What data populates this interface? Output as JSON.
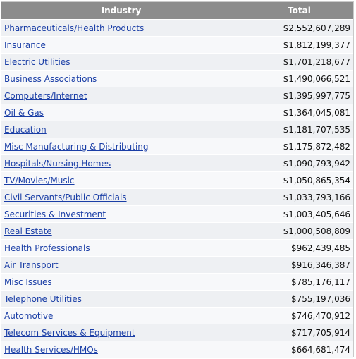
{
  "table": {
    "header": {
      "industry": "Industry",
      "total": "Total"
    },
    "rows": [
      {
        "industry": "Pharmaceuticals/Health Products",
        "total": "$2,552,607,289"
      },
      {
        "industry": "Insurance",
        "total": "$1,812,199,377"
      },
      {
        "industry": "Electric Utilities",
        "total": "$1,701,218,677"
      },
      {
        "industry": "Business Associations",
        "total": "$1,490,066,521"
      },
      {
        "industry": "Computers/Internet",
        "total": "$1,395,997,775"
      },
      {
        "industry": "Oil & Gas",
        "total": "$1,364,045,081"
      },
      {
        "industry": "Education",
        "total": "$1,181,707,535"
      },
      {
        "industry": "Misc Manufacturing & Distributing",
        "total": "$1,175,872,482"
      },
      {
        "industry": "Hospitals/Nursing Homes",
        "total": "$1,090,793,942"
      },
      {
        "industry": "TV/Movies/Music",
        "total": "$1,050,865,354"
      },
      {
        "industry": "Civil Servants/Public Officials",
        "total": "$1,033,793,166"
      },
      {
        "industry": "Securities & Investment",
        "total": "$1,003,405,646"
      },
      {
        "industry": "Real Estate",
        "total": "$1,000,508,809"
      },
      {
        "industry": "Health Professionals",
        "total": "$962,439,485"
      },
      {
        "industry": "Air Transport",
        "total": "$916,346,387"
      },
      {
        "industry": "Misc Issues",
        "total": "$785,176,117"
      },
      {
        "industry": "Telephone Utilities",
        "total": "$755,197,036"
      },
      {
        "industry": "Automotive",
        "total": "$746,470,912"
      },
      {
        "industry": "Telecom Services & Equipment",
        "total": "$717,705,914"
      },
      {
        "industry": "Health Services/HMOs",
        "total": "$664,681,474"
      }
    ]
  },
  "colors": {
    "header_bg": "#8c8c8c",
    "link": "#1a3ea6",
    "row_odd": "#eef0f3",
    "row_even": "#f7f8fa"
  }
}
